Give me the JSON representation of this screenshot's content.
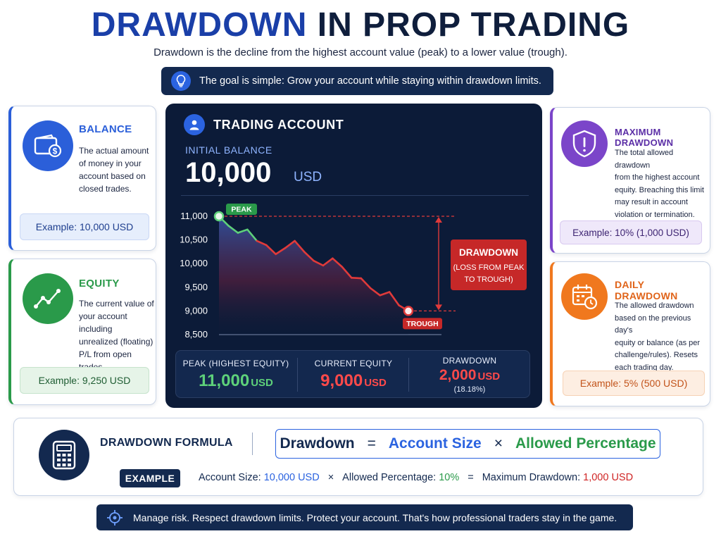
{
  "header": {
    "title_part1": "DRAWDOWN",
    "title_part2": "IN PROP TRADING",
    "subtitle": "Drawdown is the decline from the highest account value (peak) to a lower value (trough).",
    "goal": "The goal is simple: Grow your account while staying within drawdown limits."
  },
  "cards": {
    "balance": {
      "title": "BALANCE",
      "desc": [
        "The actual amount",
        "of money in your",
        "account based on",
        "closed trades."
      ],
      "example": "Example: 10,000 USD",
      "icon": "wallet-icon",
      "color": "#2b5fd9"
    },
    "equity": {
      "title": "EQUITY",
      "desc": [
        "The current value of",
        "your account including",
        "unrealized (floating)",
        "P/L from open trades."
      ],
      "example": "Example: 9,250 USD",
      "icon": "trend-line-icon",
      "color": "#2a9a4a"
    },
    "max_drawdown": {
      "title": "MAXIMUM DRAWDOWN",
      "desc": [
        "The total allowed drawdown",
        "from the highest account",
        "equity. Breaching this limit",
        "may result in account",
        "violation or termination."
      ],
      "example": "Example: 10% (1,000 USD)",
      "icon": "shield-alert-icon",
      "color": "#7b45c9"
    },
    "daily_drawdown": {
      "title": "DAILY DRAWDOWN",
      "desc": [
        "The allowed drawdown",
        "based on the previous day's",
        "equity or balance (as per",
        "challenge/rules). Resets",
        "each trading day."
      ],
      "example": "Example: 5% (500 USD)",
      "icon": "calendar-clock-icon",
      "color": "#f0781e"
    }
  },
  "account": {
    "title": "TRADING ACCOUNT",
    "initial_label": "INITIAL BALANCE",
    "initial_value": "10,000",
    "initial_unit": "USD",
    "stats": {
      "peak_label": "PEAK (HIGHEST EQUITY)",
      "peak_value": "11,000",
      "peak_unit": "USD",
      "current_label": "CURRENT EQUITY",
      "current_value": "9,000",
      "current_unit": "USD",
      "drawdown_label": "DRAWDOWN",
      "drawdown_value": "2,000",
      "drawdown_unit": "USD",
      "drawdown_pct": "(18.18%)"
    }
  },
  "chart_data": {
    "type": "line",
    "yticks": [
      "11,000",
      "10,500",
      "10,000",
      "9,500",
      "9,000",
      "8,500"
    ],
    "ytick_values": [
      11000,
      10500,
      10000,
      9500,
      9000,
      8500
    ],
    "ylim": [
      8500,
      11000
    ],
    "x": [
      0,
      1,
      2,
      3,
      4,
      5,
      6,
      7,
      8,
      9,
      10,
      11,
      12,
      13,
      14,
      15,
      16,
      17,
      18,
      19,
      20
    ],
    "values": [
      11000,
      10800,
      10650,
      10720,
      10480,
      10390,
      10200,
      10330,
      10480,
      10250,
      10060,
      9960,
      10110,
      9930,
      9700,
      9690,
      9480,
      9330,
      9400,
      9120,
      9000
    ],
    "peak_label": "PEAK",
    "trough_label": "TROUGH",
    "annotation": [
      "DRAWDOWN",
      "(LOSS FROM PEAK",
      "TO TROUGH)"
    ],
    "colors": {
      "up": "#5ed17a",
      "down": "#e03a3a",
      "peak": "#2a9a4a",
      "trough": "#c62828"
    }
  },
  "formula": {
    "title": "DRAWDOWN FORMULA",
    "term1": "Drawdown",
    "eq": "=",
    "term2": "Account Size",
    "times": "×",
    "term3": "Allowed Percentage",
    "example_label": "EXAMPLE",
    "ex_size_label": "Account Size:",
    "ex_size_value": "10,000 USD",
    "ex_times": "×",
    "ex_pct_label": "Allowed Percentage:",
    "ex_pct_value": "10%",
    "ex_eq": "=",
    "ex_max_label": "Maximum Drawdown:",
    "ex_max_value": "1,000 USD"
  },
  "footer": {
    "text": "Manage risk. Respect drawdown limits. Protect your account. That's how professional traders stay in the game.",
    "icon": "target-icon"
  }
}
